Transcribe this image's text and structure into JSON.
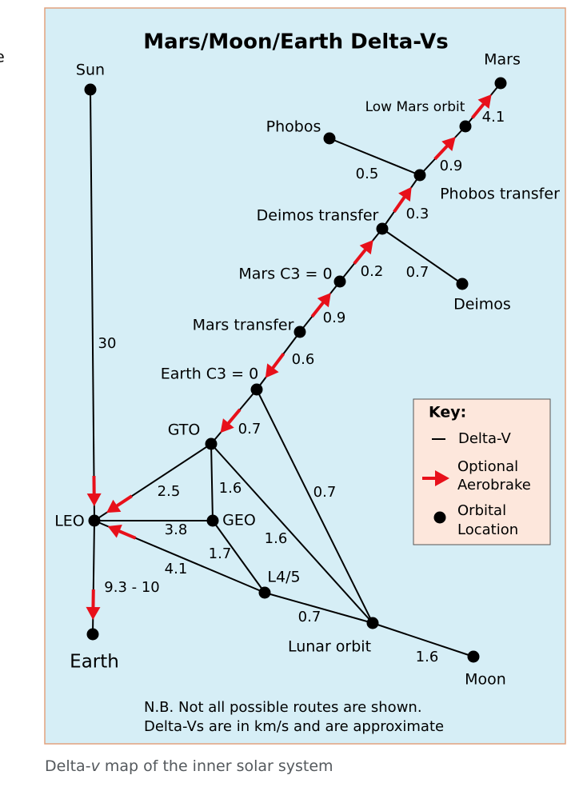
{
  "left_fragment": "e",
  "diagram": {
    "title": "Mars/Moon/Earth Delta-Vs",
    "nodes": [
      {
        "label": "Sun"
      },
      {
        "label": "Mars"
      },
      {
        "label": "Low Mars orbit"
      },
      {
        "label": "Phobos"
      },
      {
        "label": "Phobos transfer"
      },
      {
        "label": "Deimos transfer"
      },
      {
        "label": "Deimos"
      },
      {
        "label": "Mars C3 = 0"
      },
      {
        "label": "Mars transfer"
      },
      {
        "label": "Earth C3 = 0"
      },
      {
        "label": "GTO"
      },
      {
        "label": "LEO"
      },
      {
        "label": "GEO"
      },
      {
        "label": "L4/5"
      },
      {
        "label": "Lunar orbit"
      },
      {
        "label": "Moon"
      },
      {
        "label": "Earth"
      }
    ],
    "edges": [
      {
        "label": "30",
        "aerobrake": true
      },
      {
        "label": "9.3 - 10",
        "aerobrake": true
      },
      {
        "label": "2.5",
        "aerobrake": true
      },
      {
        "label": "3.8",
        "aerobrake": false
      },
      {
        "label": "4.1",
        "aerobrake": true
      },
      {
        "label": "1.6",
        "aerobrake": false
      },
      {
        "label": "1.6",
        "aerobrake": false
      },
      {
        "label": "1.7",
        "aerobrake": false
      },
      {
        "label": "0.7",
        "aerobrake": true
      },
      {
        "label": "0.7",
        "aerobrake": false
      },
      {
        "label": "0.7",
        "aerobrake": false
      },
      {
        "label": "1.6",
        "aerobrake": false
      },
      {
        "label": "0.6",
        "aerobrake": true
      },
      {
        "label": "0.9",
        "aerobrake": true
      },
      {
        "label": "0.2",
        "aerobrake": true
      },
      {
        "label": "0.7",
        "aerobrake": false
      },
      {
        "label": "0.3",
        "aerobrake": true
      },
      {
        "label": "0.5",
        "aerobrake": false
      },
      {
        "label": "0.9",
        "aerobrake": true
      },
      {
        "label": "4.1",
        "aerobrake": true
      }
    ],
    "key": {
      "title": "Key:",
      "items": [
        {
          "lines": [
            "Delta-V"
          ]
        },
        {
          "lines": [
            "Optional",
            "Aerobrake"
          ]
        },
        {
          "lines": [
            "Orbital",
            "Location"
          ]
        }
      ]
    },
    "notes": [
      "N.B. Not all possible routes are shown.",
      "Delta-Vs are in km/s and are approximate"
    ]
  },
  "caption": [
    "Delta-",
    "v",
    " map of the inner solar system"
  ]
}
